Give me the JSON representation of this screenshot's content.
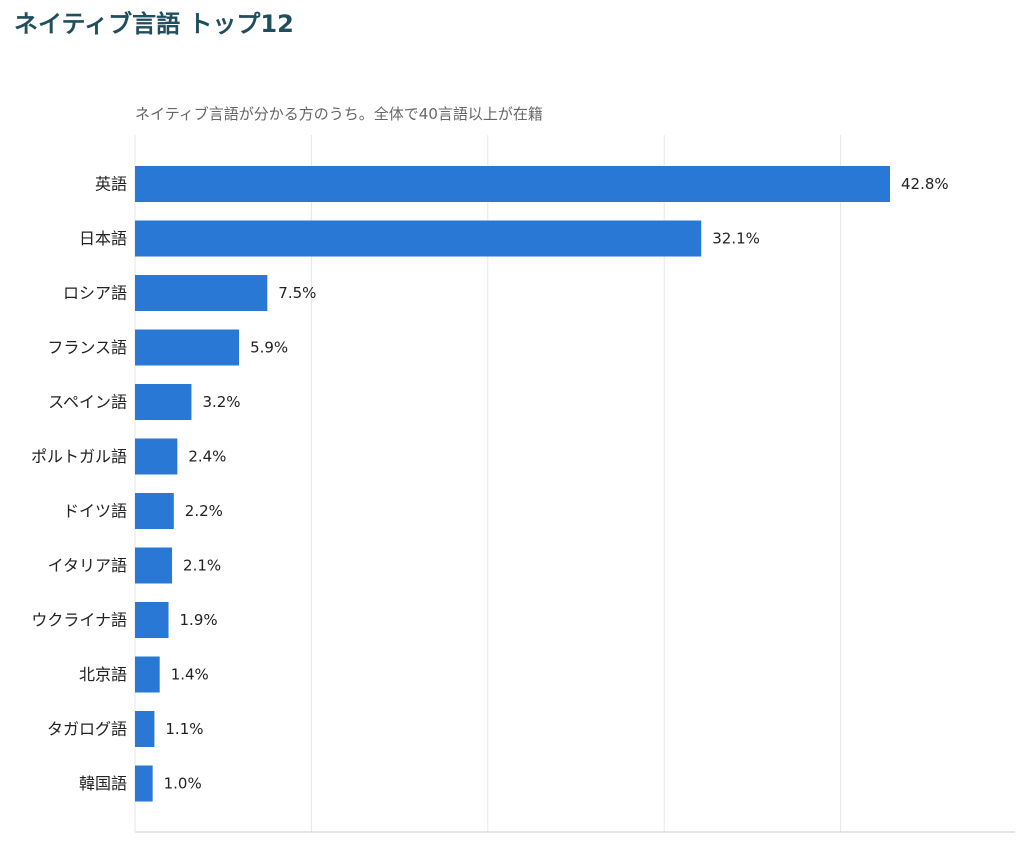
{
  "title": "ネイティブ言語 トップ12",
  "subtitle": "ネイティブ言語が分かる方のうち。全体で40言語以上が在籍",
  "colors": {
    "bar": "#2a78d6",
    "grid": "#e6e6e6",
    "axis": "#cccccc",
    "title": "#1f4e5f"
  },
  "chart_data": {
    "type": "bar",
    "orientation": "horizontal",
    "title": "ネイティブ言語 トップ12",
    "subtitle": "ネイティブ言語が分かる方のうち。全体で40言語以上が在籍",
    "categories": [
      "英語",
      "日本語",
      "ロシア語",
      "フランス語",
      "スペイン語",
      "ポルトガル語",
      "ドイツ語",
      "イタリア語",
      "ウクライナ語",
      "北京語",
      "タガログ語",
      "韓国語"
    ],
    "values": [
      42.8,
      32.1,
      7.5,
      5.9,
      3.2,
      2.4,
      2.2,
      2.1,
      1.9,
      1.4,
      1.1,
      1.0
    ],
    "value_labels": [
      "42.8%",
      "32.1%",
      "7.5%",
      "5.9%",
      "3.2%",
      "2.4%",
      "2.2%",
      "2.1%",
      "1.9%",
      "1.4%",
      "1.1%",
      "1.0%"
    ],
    "xlim": [
      0,
      50
    ],
    "grid": true,
    "legend": "none"
  }
}
